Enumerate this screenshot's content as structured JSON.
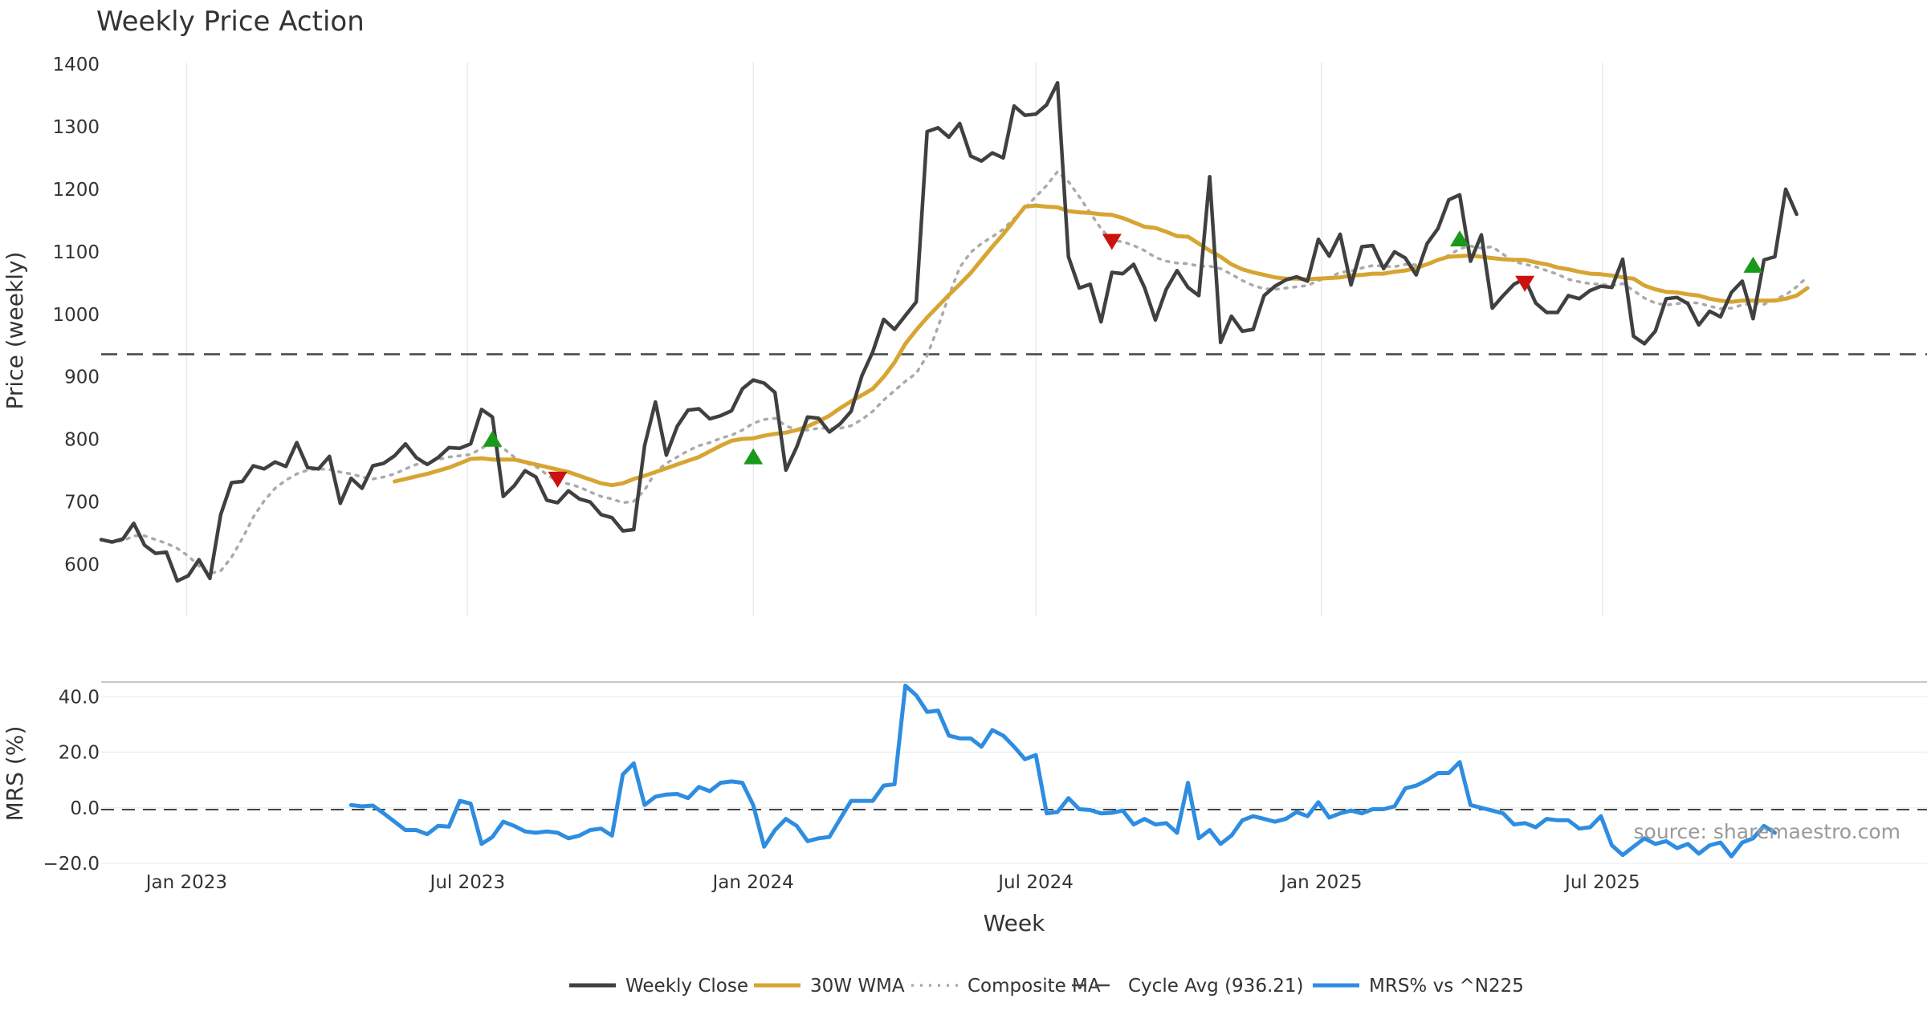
{
  "chart_data": [
    {
      "type": "line",
      "title": "Weekly Price Action",
      "ylabel": "Price (weekly)",
      "ylim": [
        515,
        1410
      ],
      "yticks": [
        "600",
        "700",
        "800",
        "900",
        "1000",
        "1100",
        "1200",
        "1300",
        "1400"
      ],
      "yticks_values": [
        600,
        700,
        800,
        900,
        1000,
        1100,
        1200,
        1300,
        1400
      ],
      "x_start": "2022-11-07",
      "x_range": [
        "2022-11-07",
        "2026-01-26"
      ],
      "grid": "vertical",
      "series": [
        {
          "name": "Weekly Close",
          "color": "#404040",
          "style": "solid",
          "values": [
            640,
            636,
            641,
            666,
            631,
            618,
            620,
            574,
            582,
            608,
            578,
            680,
            731,
            733,
            758,
            753,
            764,
            757,
            795,
            755,
            753,
            773,
            698,
            738,
            722,
            758,
            762,
            774,
            793,
            771,
            760,
            771,
            787,
            786,
            793,
            848,
            836,
            709,
            726,
            750,
            740,
            703,
            699,
            718,
            705,
            700,
            680,
            675,
            654,
            656,
            790,
            860,
            775,
            821,
            847,
            849,
            833,
            838,
            846,
            881,
            895,
            890,
            875,
            751,
            788,
            836,
            834,
            812,
            825,
            845,
            902,
            940,
            992,
            976,
            998,
            1020,
            1292,
            1298,
            1283,
            1305,
            1253,
            1245,
            1258,
            1250,
            1333,
            1318,
            1320,
            1335,
            1370,
            1092,
            1042,
            1048,
            988,
            1067,
            1065,
            1080,
            1043,
            991,
            1040,
            1070,
            1043,
            1030,
            1220,
            955,
            997,
            973,
            976,
            1030,
            1045,
            1055,
            1060,
            1053,
            1120,
            1093,
            1128,
            1047,
            1108,
            1110,
            1073,
            1100,
            1090,
            1063,
            1113,
            1137,
            1183,
            1191,
            1085,
            1127,
            1010,
            1030,
            1048,
            1057,
            1018,
            1003,
            1003,
            1030,
            1025,
            1038,
            1045,
            1043,
            1088,
            965,
            953,
            973,
            1025,
            1027,
            1017,
            983,
            1005,
            996,
            1035,
            1053,
            993,
            1087,
            1092,
            1200,
            1160
          ]
        },
        {
          "name": "30W WMA",
          "color": "#d6a532",
          "style": "solid",
          "start_week": 27,
          "values": [
            733,
            737,
            741,
            745,
            750,
            755,
            762,
            769,
            770,
            768,
            768,
            768,
            764,
            760,
            756,
            752,
            748,
            742,
            736,
            730,
            727,
            730,
            737,
            742,
            748,
            754,
            760,
            766,
            772,
            781,
            790,
            798,
            801,
            802,
            806,
            809,
            811,
            815,
            821,
            829,
            838,
            850,
            861,
            871,
            881,
            900,
            923,
            953,
            975,
            995,
            1013,
            1031,
            1048,
            1066,
            1087,
            1108,
            1128,
            1150,
            1172,
            1174,
            1172,
            1171,
            1165,
            1163,
            1162,
            1160,
            1159,
            1154,
            1147,
            1140,
            1138,
            1132,
            1125,
            1124,
            1113,
            1102,
            1092,
            1080,
            1072,
            1067,
            1063,
            1059,
            1057,
            1057,
            1056,
            1057,
            1058,
            1059,
            1062,
            1063,
            1065,
            1065,
            1068,
            1070,
            1074,
            1080,
            1087,
            1092,
            1093,
            1094,
            1092,
            1090,
            1088,
            1087,
            1087,
            1083,
            1080,
            1075,
            1072,
            1068,
            1065,
            1064,
            1062,
            1059,
            1057,
            1046,
            1040,
            1036,
            1035,
            1032,
            1030,
            1025,
            1022,
            1020,
            1022,
            1022,
            1022,
            1022,
            1025,
            1030,
            1042
          ]
        },
        {
          "name": "Composite MA",
          "color": "#aaaaaa",
          "style": "dotted",
          "values": [
            640,
            637,
            638,
            646,
            646,
            640,
            634,
            626,
            614,
            598,
            586,
            590,
            612,
            642,
            676,
            702,
            722,
            735,
            745,
            751,
            753,
            752,
            748,
            745,
            740,
            737,
            740,
            745,
            753,
            760,
            763,
            768,
            772,
            774,
            776,
            786,
            796,
            786,
            772,
            763,
            757,
            744,
            733,
            729,
            724,
            716,
            709,
            705,
            699,
            701,
            719,
            748,
            762,
            772,
            782,
            790,
            795,
            802,
            807,
            815,
            826,
            832,
            834,
            822,
            815,
            815,
            818,
            818,
            818,
            822,
            832,
            845,
            863,
            878,
            893,
            906,
            934,
            980,
            1030,
            1075,
            1099,
            1113,
            1124,
            1136,
            1153,
            1170,
            1188,
            1206,
            1228,
            1212,
            1188,
            1162,
            1137,
            1118,
            1116,
            1110,
            1102,
            1091,
            1085,
            1082,
            1081,
            1077,
            1077,
            1073,
            1064,
            1054,
            1046,
            1041,
            1040,
            1042,
            1044,
            1046,
            1054,
            1059,
            1067,
            1069,
            1074,
            1078,
            1077,
            1076,
            1080,
            1079,
            1078,
            1087,
            1094,
            1105,
            1109,
            1106,
            1108,
            1096,
            1084,
            1080,
            1076,
            1070,
            1064,
            1056,
            1052,
            1049,
            1048,
            1046,
            1049,
            1038,
            1026,
            1018,
            1015,
            1017,
            1019,
            1018,
            1013,
            1009,
            1010,
            1015,
            1018,
            1016,
            1024,
            1031,
            1044,
            1060
          ]
        },
        {
          "name": "Cycle Avg (936.21)",
          "color": "#444444",
          "style": "dashed",
          "constant": 936.21
        }
      ],
      "signals_up": [
        [
          36,
          800
        ],
        [
          60,
          772
        ],
        [
          125,
          1120
        ],
        [
          152,
          1078
        ]
      ],
      "signals_down": [
        [
          42,
          737
        ],
        [
          93,
          1117
        ],
        [
          131,
          1050
        ]
      ]
    },
    {
      "type": "line",
      "ylabel": "MRS (%)",
      "ylim": [
        -20,
        45
      ],
      "yticks": [
        "−20.0",
        "0.0",
        "20.0",
        "40.0"
      ],
      "yticks_values": [
        -20,
        0,
        20,
        40
      ],
      "xticks": [
        "Jan 2023",
        "Jul 2023",
        "Jan 2024",
        "Jul 2024",
        "Jan 2025",
        "Jul 2025"
      ],
      "xticks_dates": [
        "2023-01-01",
        "2023-07-01",
        "2024-01-01",
        "2024-07-01",
        "2025-01-01",
        "2025-07-01"
      ],
      "xlabel": "Week",
      "zero_line": true,
      "series": [
        {
          "name": "MRS% vs ^N225",
          "color": "#2e8de0",
          "style": "solid",
          "start_week": 23,
          "values": [
            1,
            0.5,
            0.8,
            -2,
            -5,
            -8,
            -8,
            -9.5,
            -6.5,
            -6.8,
            2.5,
            1.5,
            -13,
            -10.5,
            -5,
            -6.5,
            -8.5,
            -9,
            -8.5,
            -9,
            -11,
            -10,
            -8,
            -7.5,
            -10,
            12,
            16,
            1,
            4,
            4.8,
            5,
            3.5,
            7.5,
            6,
            9,
            9.5,
            9,
            1,
            -14,
            -8,
            -4,
            -6.5,
            -12,
            -11,
            -10.5,
            -4,
            2.5,
            2.5,
            2.5,
            8,
            8.5,
            44,
            40.5,
            34.5,
            35,
            26,
            25,
            25,
            22,
            28,
            26,
            22,
            17.5,
            19,
            -2,
            -1.5,
            3.5,
            -0.5,
            -0.8,
            -2,
            -1.8,
            -1,
            -6,
            -4,
            -6,
            -5.5,
            -9,
            9,
            -11,
            -8,
            -13,
            -10,
            -4.5,
            -3,
            -4,
            -5,
            -4,
            -1.5,
            -3,
            2,
            -3.5,
            -2,
            -1,
            -2,
            -0.5,
            -0.5,
            0.5,
            7,
            8,
            10,
            12.5,
            12.5,
            16.5,
            1,
            0,
            -1,
            -2,
            -6,
            -5.5,
            -7,
            -4,
            -4.5,
            -4.5,
            -7.5,
            -7,
            -3,
            -13.5,
            -17,
            -14,
            -11,
            -13,
            -12,
            -14.5,
            -13,
            -16.5,
            -13.5,
            -12.5,
            -17.5,
            -12.5,
            -11,
            -6.5,
            -9
          ]
        }
      ]
    }
  ],
  "legend": [
    {
      "label": "Weekly Close",
      "color": "#404040",
      "style": "solid"
    },
    {
      "label": "30W WMA",
      "color": "#d6a532",
      "style": "solid"
    },
    {
      "label": "Composite MA",
      "color": "#aaaaaa",
      "style": "dotted"
    },
    {
      "label": "Cycle Avg (936.21)",
      "color": "#444444",
      "style": "dashed"
    },
    {
      "label": "MRS% vs ^N225",
      "color": "#2e8de0",
      "style": "solid"
    }
  ],
  "source_text": "source: sharemaestro.com",
  "colors": {
    "signal_up": "#1a9a1a",
    "signal_down": "#cc1111"
  }
}
